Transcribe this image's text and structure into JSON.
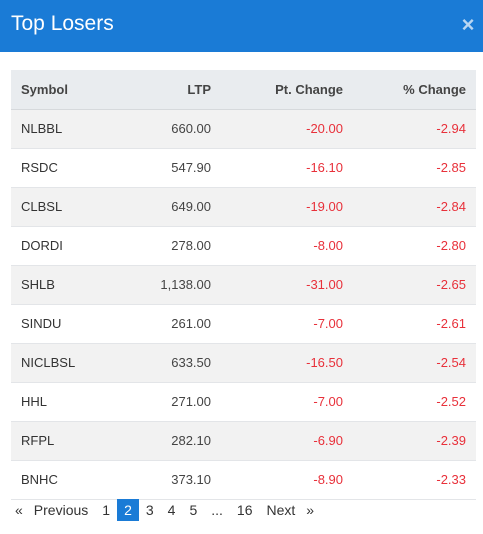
{
  "header": {
    "title": "Top Losers",
    "close_label": "×"
  },
  "table": {
    "columns": [
      "Symbol",
      "LTP",
      "Pt. Change",
      "% Change"
    ],
    "rows": [
      {
        "symbol": "NLBBL",
        "ltp": "660.00",
        "pt_change": "-20.00",
        "pct_change": "-2.94"
      },
      {
        "symbol": "RSDC",
        "ltp": "547.90",
        "pt_change": "-16.10",
        "pct_change": "-2.85"
      },
      {
        "symbol": "CLBSL",
        "ltp": "649.00",
        "pt_change": "-19.00",
        "pct_change": "-2.84"
      },
      {
        "symbol": "DORDI",
        "ltp": "278.00",
        "pt_change": "-8.00",
        "pct_change": "-2.80"
      },
      {
        "symbol": "SHLB",
        "ltp": "1,138.00",
        "pt_change": "-31.00",
        "pct_change": "-2.65"
      },
      {
        "symbol": "SINDU",
        "ltp": "261.00",
        "pt_change": "-7.00",
        "pct_change": "-2.61"
      },
      {
        "symbol": "NICLBSL",
        "ltp": "633.50",
        "pt_change": "-16.50",
        "pct_change": "-2.54"
      },
      {
        "symbol": "HHL",
        "ltp": "271.00",
        "pt_change": "-7.00",
        "pct_change": "-2.52"
      },
      {
        "symbol": "RFPL",
        "ltp": "282.10",
        "pt_change": "-6.90",
        "pct_change": "-2.39"
      },
      {
        "symbol": "BNHC",
        "ltp": "373.10",
        "pt_change": "-8.90",
        "pct_change": "-2.33"
      }
    ]
  },
  "pagination": {
    "prev_arrow": "«",
    "prev_label": "Previous",
    "pages": [
      "1",
      "2",
      "3",
      "4",
      "5"
    ],
    "ellipsis": "...",
    "last_page": "16",
    "next_label": "Next",
    "next_arrow": "»",
    "current_page": "2"
  },
  "colors": {
    "header_bg": "#1a7bd6",
    "negative": "#e8303a",
    "active_page": "#1a7bd6"
  }
}
